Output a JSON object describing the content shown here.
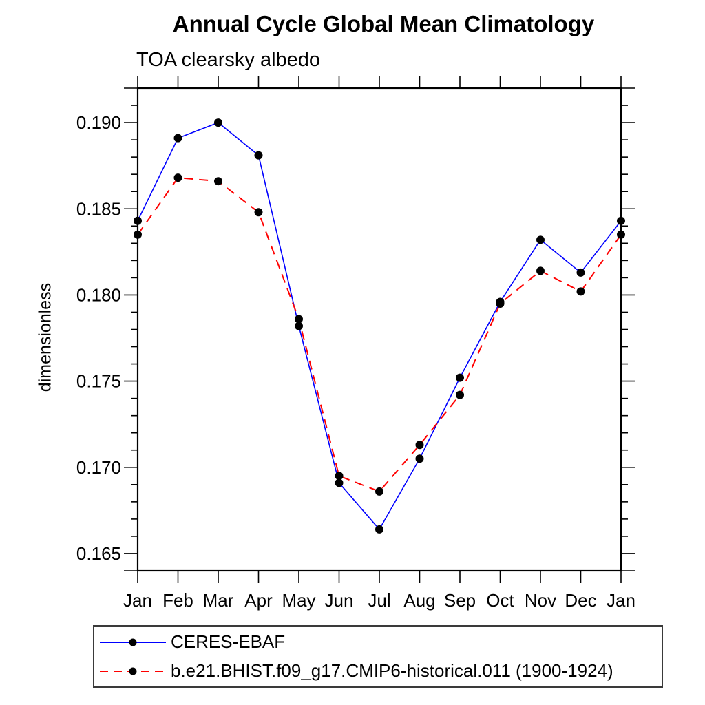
{
  "chart_data": {
    "type": "line",
    "title": "Annual Cycle Global Mean Climatology",
    "subtitle": "TOA clearsky albedo",
    "ylabel": "dimensionless",
    "xlabel": "",
    "categories": [
      "Jan",
      "Feb",
      "Mar",
      "Apr",
      "May",
      "Jun",
      "Jul",
      "Aug",
      "Sep",
      "Oct",
      "Nov",
      "Dec",
      "Jan"
    ],
    "series": [
      {
        "name": "CERES-EBAF",
        "color": "#0000ff",
        "line_style": "solid",
        "marker": "black-dot",
        "values": [
          0.1843,
          0.1891,
          0.19,
          0.1881,
          0.1782,
          0.1691,
          0.1664,
          0.1705,
          0.1752,
          0.1796,
          0.1832,
          0.1813,
          0.1843
        ]
      },
      {
        "name": "b.e21.BHIST.f09_g17.CMIP6-historical.011 (1900-1924)",
        "color": "#ff0000",
        "line_style": "dashed",
        "marker": "black-dot",
        "values": [
          0.1835,
          0.1868,
          0.1866,
          0.1848,
          0.1786,
          0.1695,
          0.1686,
          0.1713,
          0.1742,
          0.1795,
          0.1814,
          0.1802,
          0.1835
        ]
      }
    ],
    "ylim": [
      0.164,
      0.192
    ],
    "ytick_major": [
      0.165,
      0.17,
      0.175,
      0.18,
      0.185,
      0.19
    ],
    "ytick_labels": [
      "0.165",
      "0.170",
      "0.175",
      "0.180",
      "0.185",
      "0.190"
    ],
    "ytick_minor_step": 0.001,
    "marker_color": "#000000",
    "grid": false,
    "legend_position": "bottom-left"
  }
}
